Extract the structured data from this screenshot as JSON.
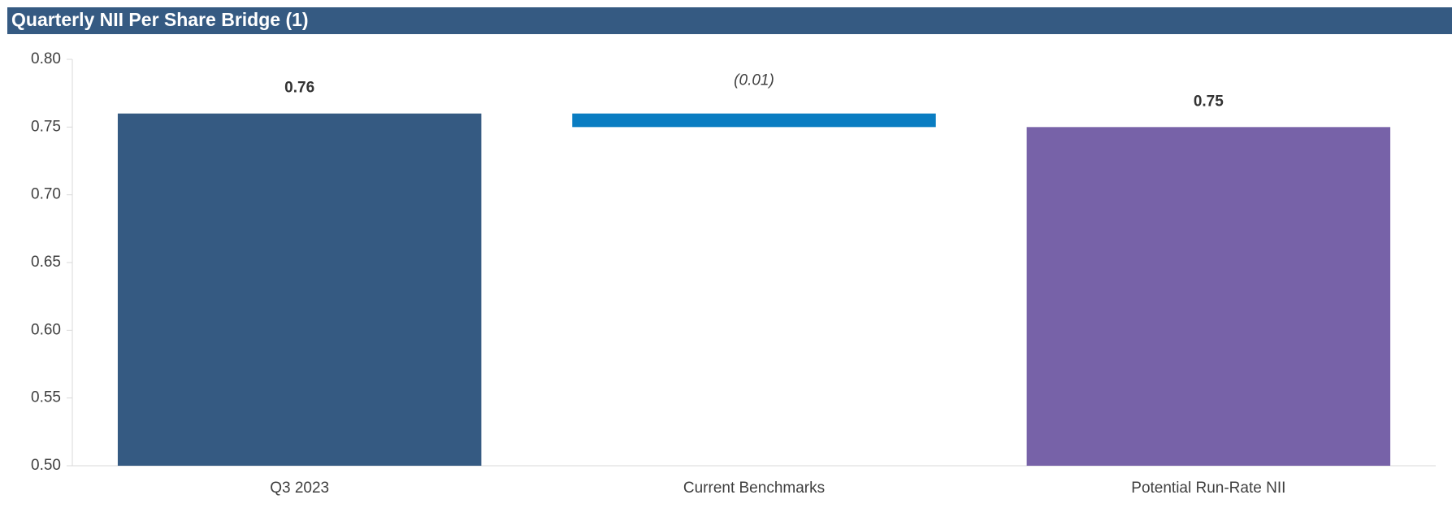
{
  "chart_data": {
    "type": "waterfall",
    "title": "Quarterly NII Per Share Bridge (1)",
    "categories": [
      "Q3 2023",
      "Current Benchmarks",
      "Potential Run-Rate NII"
    ],
    "values": [
      0.76,
      -0.01,
      0.75
    ],
    "value_labels": [
      "0.76",
      "(0.01)",
      "0.75"
    ],
    "measure": [
      "absolute",
      "relative",
      "absolute"
    ],
    "colors": [
      "#355a82",
      "#0a7dc2",
      "#7762a8"
    ],
    "ylim": [
      0.5,
      0.8
    ],
    "yticks": [
      {
        "value": 0.5,
        "label": "0.50"
      },
      {
        "value": 0.55,
        "label": "0.55"
      },
      {
        "value": 0.6,
        "label": "0.60"
      },
      {
        "value": 0.65,
        "label": "0.65"
      },
      {
        "value": 0.7,
        "label": "0.70"
      },
      {
        "value": 0.75,
        "label": "0.75"
      },
      {
        "value": 0.8,
        "label": "0.80"
      }
    ],
    "grid": false
  }
}
